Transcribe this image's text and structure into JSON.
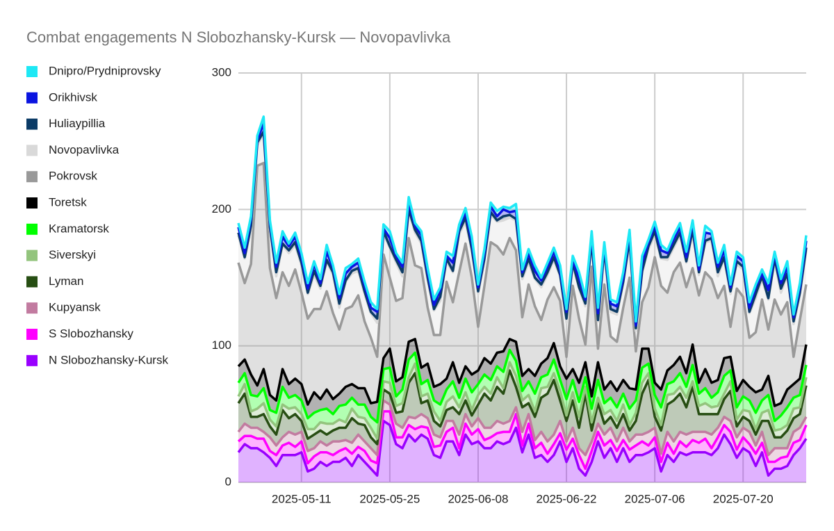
{
  "chart_data": {
    "type": "stacked-area",
    "title": "Combat engagements N Slobozhansky-Kursk — Novopavlivka",
    "x": [
      "2025-05-01",
      "2025-05-02",
      "2025-05-03",
      "2025-05-04",
      "2025-05-05",
      "2025-05-06",
      "2025-05-07",
      "2025-05-08",
      "2025-05-09",
      "2025-05-10",
      "2025-05-11",
      "2025-05-12",
      "2025-05-13",
      "2025-05-14",
      "2025-05-15",
      "2025-05-16",
      "2025-05-17",
      "2025-05-18",
      "2025-05-19",
      "2025-05-20",
      "2025-05-21",
      "2025-05-22",
      "2025-05-23",
      "2025-05-24",
      "2025-05-25",
      "2025-05-26",
      "2025-05-27",
      "2025-05-28",
      "2025-05-29",
      "2025-05-30",
      "2025-05-31",
      "2025-06-01",
      "2025-06-02",
      "2025-06-03",
      "2025-06-04",
      "2025-06-05",
      "2025-06-06",
      "2025-06-07",
      "2025-06-08",
      "2025-06-09",
      "2025-06-10",
      "2025-06-11",
      "2025-06-12",
      "2025-06-13",
      "2025-06-14",
      "2025-06-15",
      "2025-06-16",
      "2025-06-17",
      "2025-06-18",
      "2025-06-19",
      "2025-06-20",
      "2025-06-21",
      "2025-06-22",
      "2025-06-23",
      "2025-06-24",
      "2025-06-25",
      "2025-06-26",
      "2025-06-27",
      "2025-06-28",
      "2025-06-29",
      "2025-06-30",
      "2025-07-01",
      "2025-07-02",
      "2025-07-03",
      "2025-07-04",
      "2025-07-05",
      "2025-07-06",
      "2025-07-07",
      "2025-07-08",
      "2025-07-09",
      "2025-07-10",
      "2025-07-11",
      "2025-07-12",
      "2025-07-13",
      "2025-07-14",
      "2025-07-15",
      "2025-07-16",
      "2025-07-17",
      "2025-07-18",
      "2025-07-19",
      "2025-07-20",
      "2025-07-21",
      "2025-07-22",
      "2025-07-23",
      "2025-07-24",
      "2025-07-25",
      "2025-07-26",
      "2025-07-27",
      "2025-07-28",
      "2025-07-29",
      "2025-07-30"
    ],
    "xticks": [
      "2025-05-11",
      "2025-05-25",
      "2025-06-08",
      "2025-06-22",
      "2025-07-06",
      "2025-07-20"
    ],
    "ylim": [
      0,
      300
    ],
    "yticks": [
      0,
      100,
      200,
      300
    ],
    "grid": true,
    "legend": "left",
    "series": [
      {
        "name": "Dnipro/Prydniprovsky",
        "color": "#1ee8f5",
        "values": [
          3,
          4,
          2,
          3,
          5,
          2,
          3,
          4,
          2,
          3,
          3,
          4,
          2,
          3,
          5,
          2,
          3,
          4,
          2,
          3,
          3,
          4,
          2,
          3,
          5,
          2,
          3,
          4,
          2,
          3,
          3,
          4,
          2,
          3,
          5,
          2,
          3,
          4,
          2,
          3,
          3,
          4,
          2,
          3,
          5,
          2,
          3,
          4,
          2,
          3,
          3,
          4,
          2,
          3,
          5,
          2,
          3,
          4,
          2,
          3,
          3,
          4,
          2,
          3,
          5,
          2,
          3,
          4,
          2,
          3,
          3,
          4,
          2,
          3,
          5,
          2,
          3,
          4,
          2,
          3,
          3,
          4,
          2,
          3,
          5,
          2,
          3,
          4,
          2,
          3,
          4
        ]
      },
      {
        "name": "Orikhivsk",
        "color": "#0a14e0",
        "values": [
          4,
          3,
          5,
          2,
          6,
          3,
          4,
          5,
          3,
          4,
          4,
          3,
          5,
          2,
          6,
          3,
          4,
          5,
          3,
          4,
          4,
          3,
          5,
          2,
          6,
          3,
          4,
          5,
          3,
          4,
          4,
          3,
          5,
          2,
          6,
          3,
          4,
          5,
          3,
          4,
          4,
          3,
          5,
          2,
          6,
          3,
          4,
          5,
          3,
          4,
          4,
          3,
          5,
          2,
          6,
          3,
          4,
          5,
          3,
          4,
          4,
          3,
          5,
          2,
          6,
          3,
          4,
          5,
          3,
          4,
          4,
          3,
          5,
          2,
          6,
          3,
          4,
          5,
          3,
          4,
          4,
          3,
          5,
          2,
          6,
          3,
          4,
          5,
          3,
          4,
          5
        ]
      },
      {
        "name": "Huliaypillia",
        "color": "#0b3b66",
        "values": [
          2,
          1,
          3,
          2,
          1,
          2,
          3,
          1,
          2,
          2,
          2,
          1,
          3,
          2,
          1,
          2,
          3,
          1,
          2,
          2,
          2,
          1,
          3,
          2,
          1,
          2,
          3,
          1,
          2,
          2,
          2,
          1,
          3,
          2,
          1,
          2,
          3,
          1,
          2,
          2,
          2,
          1,
          3,
          2,
          1,
          2,
          3,
          1,
          2,
          2,
          2,
          1,
          3,
          2,
          1,
          2,
          3,
          1,
          2,
          2,
          2,
          1,
          3,
          2,
          1,
          2,
          3,
          1,
          2,
          2,
          2,
          1,
          3,
          2,
          1,
          2,
          3,
          1,
          2,
          2,
          2,
          1,
          3,
          2,
          1,
          2,
          3,
          1,
          2,
          2,
          2
        ]
      },
      {
        "name": "Novopavlivka",
        "color": "#d9d9d9",
        "values": [
          20,
          18,
          25,
          15,
          22,
          28,
          16,
          20,
          24,
          18,
          20,
          18,
          25,
          15,
          22,
          28,
          16,
          20,
          24,
          18,
          20,
          18,
          25,
          15,
          22,
          28,
          16,
          20,
          24,
          18,
          20,
          18,
          25,
          15,
          22,
          28,
          16,
          20,
          24,
          18,
          20,
          18,
          25,
          15,
          22,
          28,
          16,
          20,
          24,
          18,
          20,
          18,
          25,
          15,
          22,
          28,
          16,
          20,
          24,
          18,
          20,
          18,
          25,
          15,
          22,
          28,
          16,
          20,
          24,
          18,
          20,
          18,
          25,
          15,
          22,
          28,
          16,
          20,
          24,
          18,
          20,
          18,
          25,
          15,
          22,
          28,
          16,
          20,
          24,
          18,
          25
        ]
      },
      {
        "name": "Pokrovsk",
        "color": "#999999",
        "values": [
          76,
          56,
          81,
          161,
          151,
          93,
          75,
          71,
          72,
          80,
          67,
          63,
          61,
          66,
          72,
          63,
          47,
          57,
          57,
          68,
          49,
          48,
          33,
          76,
          52,
          59,
          58,
          76,
          54,
          73,
          41,
          38,
          36,
          71,
          44,
          81,
          90,
          71,
          32,
          53,
          89,
          78,
          71,
          74,
          67,
          43,
          62,
          51,
          32,
          43,
          41,
          48,
          16,
          61,
          47,
          13,
          95,
          10,
          77,
          33,
          36,
          53,
          81,
          28,
          34,
          45,
          92,
          76,
          57,
          68,
          69,
          63,
          56,
          64,
          71,
          76,
          60,
          53,
          22,
          75,
          61,
          36,
          44,
          66,
          34,
          78,
          65,
          64,
          20,
          43,
          44
        ]
      },
      {
        "name": "Toretsk",
        "color": "#000000",
        "values": [
          12,
          10,
          15,
          8,
          14,
          11,
          9,
          13,
          10,
          12,
          12,
          10,
          15,
          8,
          14,
          11,
          9,
          13,
          10,
          12,
          12,
          10,
          15,
          8,
          14,
          11,
          9,
          13,
          10,
          12,
          12,
          10,
          15,
          8,
          14,
          11,
          9,
          13,
          10,
          12,
          12,
          10,
          15,
          8,
          14,
          11,
          9,
          13,
          10,
          12,
          12,
          10,
          15,
          8,
          14,
          11,
          9,
          13,
          10,
          12,
          12,
          10,
          15,
          8,
          14,
          11,
          9,
          13,
          10,
          12,
          12,
          10,
          15,
          8,
          14,
          11,
          9,
          13,
          10,
          12,
          12,
          10,
          15,
          8,
          14,
          11,
          9,
          13,
          10,
          12,
          15
        ]
      },
      {
        "name": "Kramatorsk",
        "color": "#00ff00",
        "values": [
          10,
          8,
          12,
          9,
          11,
          7,
          10,
          13,
          8,
          9,
          10,
          8,
          12,
          9,
          11,
          7,
          10,
          13,
          8,
          9,
          10,
          8,
          12,
          9,
          11,
          7,
          10,
          13,
          8,
          9,
          10,
          8,
          12,
          9,
          11,
          7,
          10,
          13,
          8,
          9,
          10,
          8,
          12,
          9,
          11,
          7,
          10,
          13,
          8,
          9,
          10,
          8,
          12,
          9,
          11,
          7,
          10,
          13,
          8,
          9,
          10,
          8,
          12,
          9,
          11,
          7,
          10,
          13,
          8,
          9,
          10,
          8,
          12,
          9,
          11,
          7,
          10,
          13,
          8,
          9,
          10,
          8,
          12,
          9,
          11,
          7,
          10,
          13,
          8,
          9,
          9
        ]
      },
      {
        "name": "Siverskyi",
        "color": "#93c47d",
        "values": [
          5,
          7,
          4,
          6,
          8,
          5,
          6,
          4,
          7,
          5,
          5,
          7,
          4,
          6,
          8,
          5,
          6,
          4,
          7,
          5,
          5,
          7,
          4,
          6,
          8,
          5,
          6,
          4,
          7,
          5,
          5,
          7,
          4,
          6,
          8,
          5,
          6,
          4,
          7,
          5,
          5,
          7,
          4,
          6,
          8,
          5,
          6,
          4,
          7,
          5,
          5,
          7,
          4,
          6,
          8,
          5,
          6,
          4,
          7,
          5,
          5,
          7,
          4,
          6,
          8,
          5,
          6,
          4,
          7,
          5,
          5,
          7,
          4,
          6,
          8,
          5,
          6,
          4,
          7,
          5,
          5,
          7,
          4,
          6,
          8,
          5,
          6,
          4,
          7,
          5,
          6
        ]
      },
      {
        "name": "Lyman",
        "color": "#274e13",
        "values": [
          21,
          22,
          8,
          8,
          13,
          8,
          8,
          20,
          10,
          15,
          8,
          9,
          10,
          8,
          8,
          8,
          10,
          9,
          18,
          8,
          12,
          8,
          8,
          8,
          8,
          8,
          12,
          25,
          33,
          8,
          13,
          10,
          8,
          8,
          10,
          15,
          10,
          8,
          10,
          25,
          20,
          25,
          22,
          37,
          15,
          18,
          8,
          17,
          25,
          35,
          40,
          15,
          15,
          20,
          15,
          45,
          8,
          15,
          8,
          8,
          10,
          10,
          8,
          10,
          30,
          38,
          8,
          17,
          20,
          30,
          28,
          20,
          33,
          13,
          13,
          15,
          10,
          13,
          22,
          8,
          8,
          8,
          8,
          8,
          25,
          8,
          8,
          13,
          10,
          10,
          23
        ]
      },
      {
        "name": "Kupyansk",
        "color": "#c27ba0",
        "values": [
          7,
          9,
          6,
          8,
          5,
          10,
          7,
          6,
          8,
          9,
          7,
          9,
          6,
          8,
          5,
          10,
          7,
          6,
          8,
          9,
          7,
          9,
          6,
          8,
          5,
          10,
          7,
          6,
          8,
          9,
          7,
          9,
          6,
          8,
          5,
          10,
          7,
          6,
          8,
          9,
          7,
          9,
          6,
          8,
          5,
          10,
          7,
          6,
          8,
          9,
          7,
          9,
          6,
          8,
          5,
          10,
          7,
          6,
          8,
          9,
          7,
          9,
          6,
          8,
          5,
          10,
          7,
          6,
          8,
          9,
          7,
          9,
          6,
          8,
          5,
          10,
          7,
          6,
          8,
          9,
          7,
          9,
          6,
          8,
          5,
          10,
          7,
          6,
          8,
          9,
          6
        ]
      },
      {
        "name": "S Slobozhansky",
        "color": "#ff00ff",
        "values": [
          8,
          6,
          9,
          7,
          10,
          5,
          8,
          7,
          9,
          6,
          8,
          6,
          9,
          7,
          10,
          5,
          8,
          7,
          9,
          6,
          8,
          6,
          9,
          7,
          10,
          5,
          8,
          7,
          9,
          6,
          8,
          6,
          9,
          7,
          10,
          5,
          8,
          7,
          9,
          6,
          8,
          6,
          9,
          7,
          10,
          5,
          8,
          7,
          9,
          6,
          8,
          6,
          9,
          7,
          10,
          5,
          8,
          7,
          9,
          6,
          8,
          6,
          9,
          7,
          10,
          5,
          8,
          7,
          9,
          6,
          8,
          6,
          9,
          7,
          10,
          5,
          8,
          7,
          9,
          6,
          8,
          6,
          9,
          7,
          10,
          5,
          8,
          7,
          9,
          6,
          10
        ]
      },
      {
        "name": "N Slobozhansky-Kursk",
        "color": "#9900ff",
        "values": [
          22,
          28,
          25,
          25,
          22,
          18,
          12,
          20,
          20,
          20,
          22,
          8,
          10,
          15,
          12,
          15,
          15,
          18,
          12,
          20,
          15,
          10,
          5,
          45,
          42,
          28,
          25,
          35,
          30,
          35,
          32,
          20,
          18,
          30,
          30,
          20,
          35,
          28,
          30,
          25,
          25,
          30,
          28,
          30,
          40,
          22,
          35,
          18,
          20,
          15,
          20,
          30,
          15,
          25,
          10,
          5,
          15,
          30,
          18,
          25,
          15,
          25,
          15,
          20,
          20,
          22,
          25,
          8,
          20,
          15,
          22,
          20,
          22,
          22,
          22,
          20,
          25,
          35,
          28,
          18,
          25,
          22,
          12,
          22,
          5,
          10,
          10,
          12,
          20,
          25,
          32
        ]
      }
    ]
  }
}
